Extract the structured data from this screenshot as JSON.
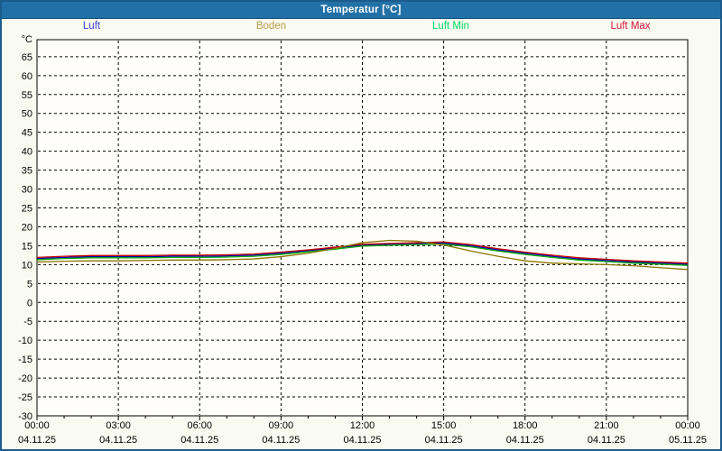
{
  "window": {
    "title": "Temperatur [°C]"
  },
  "colors": {
    "title_bar": "#2171a7",
    "frame": "#1c5c8c",
    "panel_bg": "#f9fbf0",
    "plot_bg": "#fffefa",
    "grid": "#000000"
  },
  "legend": {
    "items": [
      {
        "label": "Luft",
        "color": "#3f3fd9"
      },
      {
        "label": "Boden",
        "color": "#b89b4a"
      },
      {
        "label": "Luft Min",
        "color": "#00d966"
      },
      {
        "label": "Luft Max",
        "color": "#d4143f"
      }
    ]
  },
  "chart_data": {
    "type": "line",
    "title": "Temperatur [°C]",
    "xlabel": "",
    "ylabel": "°C",
    "ylim": [
      -30,
      69.5
    ],
    "yticks": [
      65,
      60,
      55,
      50,
      45,
      40,
      35,
      30,
      25,
      20,
      15,
      10,
      5,
      0,
      -5,
      -10,
      -15,
      -20,
      -25,
      -30
    ],
    "grid": true,
    "legend_position": "top",
    "x_unit": "hours",
    "x_range_hours": [
      0,
      24
    ],
    "xticks": [
      {
        "time": "00:00",
        "date": "04.11.25"
      },
      {
        "time": "03:00",
        "date": "04.11.25"
      },
      {
        "time": "06:00",
        "date": "04.11.25"
      },
      {
        "time": "09:00",
        "date": "04.11.25"
      },
      {
        "time": "12:00",
        "date": "04.11.25"
      },
      {
        "time": "15:00",
        "date": "04.11.25"
      },
      {
        "time": "18:00",
        "date": "04.11.25"
      },
      {
        "time": "21:00",
        "date": "04.11.25"
      },
      {
        "time": "00:00",
        "date": "05.11.25"
      }
    ],
    "series": [
      {
        "name": "Luft",
        "color": "#0000b8",
        "values": [
          11.6,
          11.9,
          12.1,
          12.1,
          12.1,
          12.2,
          12.2,
          12.3,
          12.5,
          13.0,
          13.7,
          14.4,
          15.2,
          15.4,
          15.6,
          15.7,
          15.0,
          13.9,
          13.0,
          12.2,
          11.5,
          11.1,
          10.7,
          10.4,
          10.1
        ]
      },
      {
        "name": "Boden",
        "color": "#8c7500",
        "values": [
          10.7,
          10.9,
          11.0,
          11.0,
          11.1,
          11.2,
          11.2,
          11.3,
          11.5,
          12.1,
          13.0,
          14.3,
          15.8,
          16.4,
          16.2,
          15.2,
          13.6,
          12.2,
          11.0,
          10.4,
          10.2,
          10.0,
          9.7,
          9.2,
          8.7
        ]
      },
      {
        "name": "Luft Min",
        "color": "#00a800",
        "values": [
          11.3,
          11.6,
          11.8,
          11.8,
          11.8,
          11.9,
          11.9,
          12.0,
          12.2,
          12.7,
          13.4,
          14.1,
          14.9,
          15.1,
          15.3,
          15.4,
          14.7,
          13.6,
          12.7,
          11.9,
          11.2,
          10.8,
          10.4,
          10.1,
          9.8
        ]
      },
      {
        "name": "Luft Max",
        "color": "#c40000",
        "values": [
          11.9,
          12.2,
          12.4,
          12.4,
          12.4,
          12.5,
          12.5,
          12.6,
          12.8,
          13.3,
          13.9,
          14.6,
          15.4,
          15.6,
          15.8,
          16.0,
          15.3,
          14.2,
          13.3,
          12.5,
          11.8,
          11.4,
          11.0,
          10.7,
          10.4
        ]
      }
    ]
  }
}
